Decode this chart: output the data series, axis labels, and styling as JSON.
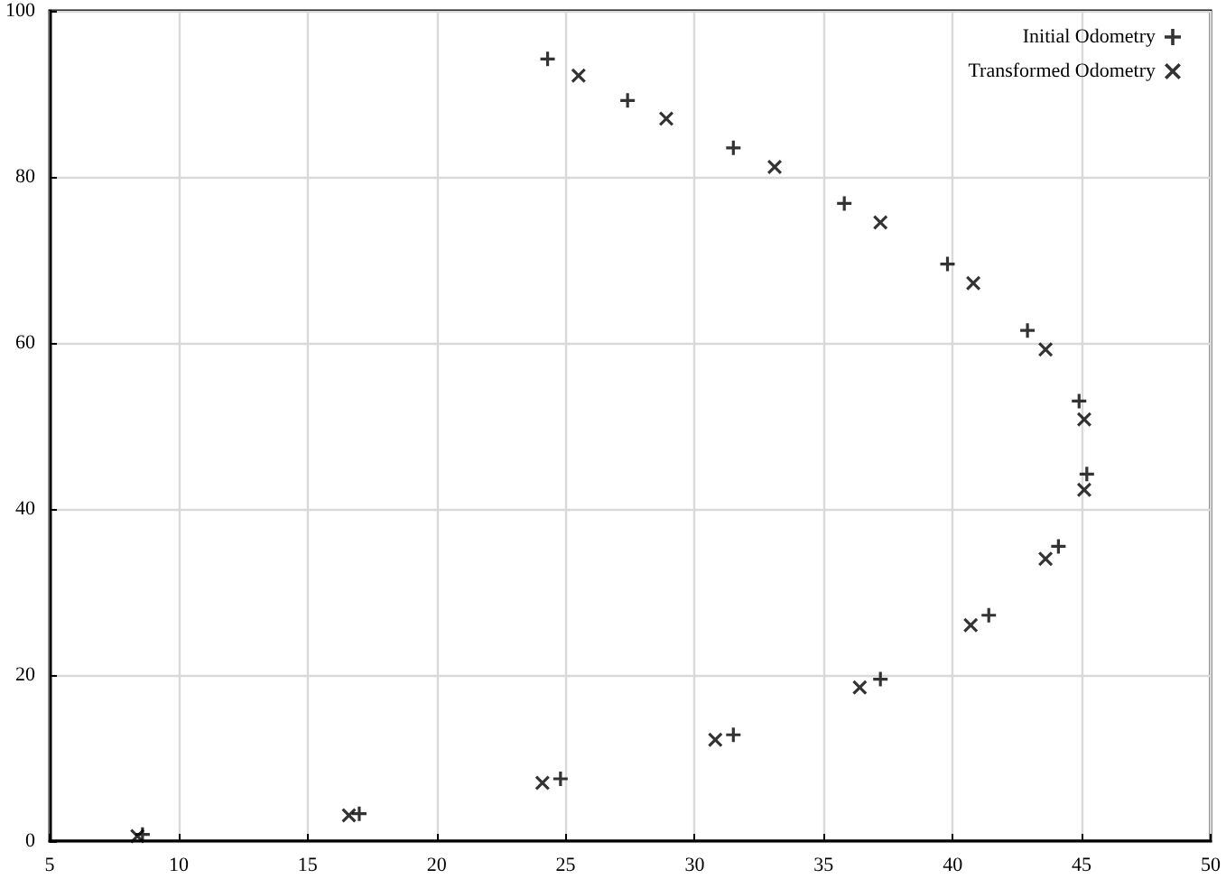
{
  "chart_data": {
    "type": "scatter",
    "xlim": [
      5,
      50
    ],
    "xticks": [
      5,
      10,
      15,
      20,
      25,
      30,
      35,
      40,
      45,
      50
    ],
    "ylim": [
      0,
      100
    ],
    "yticks": [
      0,
      20,
      40,
      60,
      80,
      100
    ],
    "grid": true,
    "legend": "top right",
    "series": [
      {
        "name": "Initial Odometry",
        "color": "#000000",
        "marker": "plus",
        "x": [
          8.6,
          17.0,
          24.8,
          31.5,
          37.2,
          41.4,
          44.1,
          45.2,
          44.9,
          42.9,
          39.8,
          35.8,
          31.5,
          27.4,
          24.3
        ],
        "values": [
          0.8,
          3.3,
          7.5,
          12.8,
          19.5,
          27.2,
          35.5,
          44.2,
          53.0,
          61.5,
          69.5,
          76.8,
          83.5,
          89.2,
          94.2
        ]
      },
      {
        "name": "Transformed Odometry",
        "color": "#000000",
        "marker": "cross",
        "x": [
          8.4,
          16.6,
          24.1,
          30.8,
          36.4,
          40.7,
          43.6,
          45.1,
          45.1,
          43.6,
          40.8,
          37.2,
          33.1,
          28.9,
          25.5
        ],
        "values": [
          0.6,
          3.1,
          7.0,
          12.2,
          18.5,
          26.0,
          34.0,
          42.3,
          50.8,
          59.2,
          67.2,
          74.5,
          81.2,
          87.0,
          92.2
        ]
      }
    ]
  }
}
